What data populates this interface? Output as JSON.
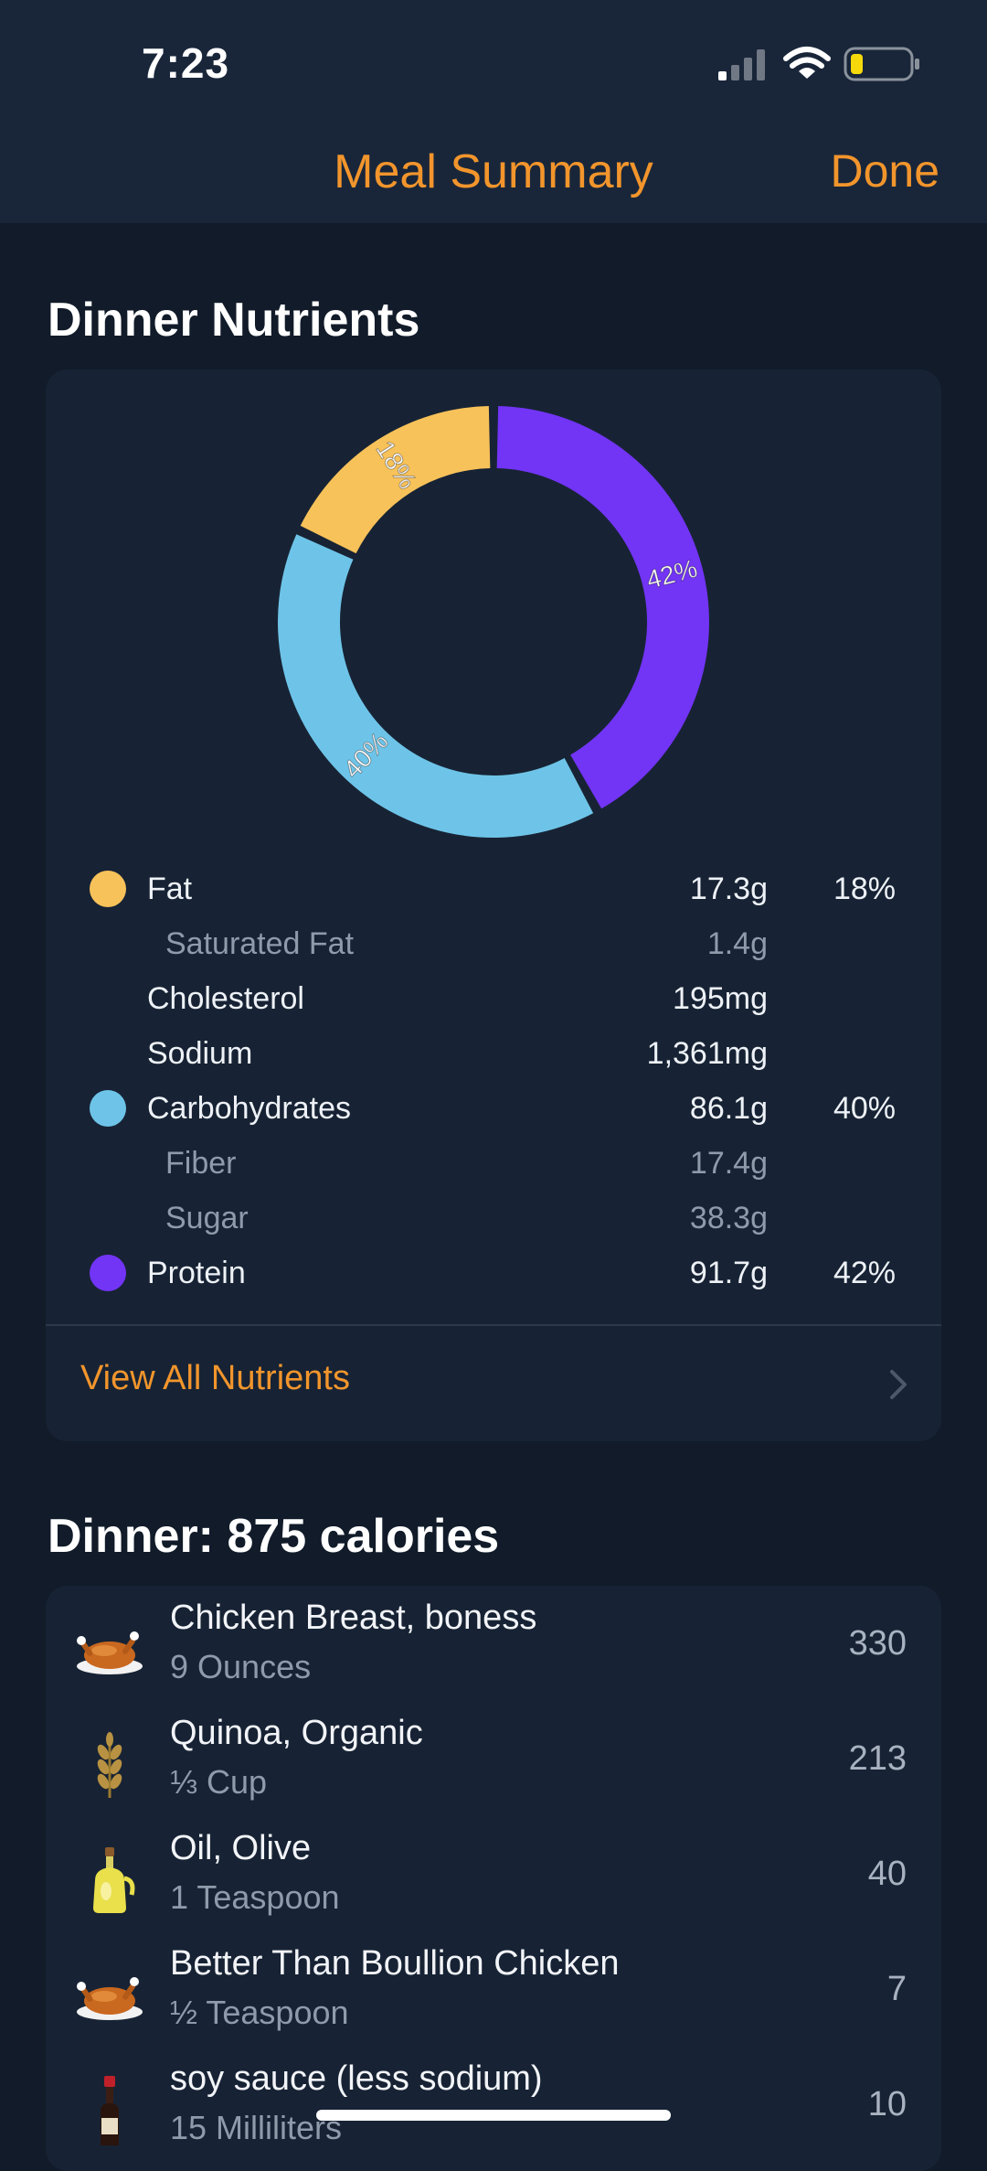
{
  "status": {
    "time": "7:23"
  },
  "nav": {
    "title": "Meal Summary",
    "done": "Done"
  },
  "nutrients_section": {
    "title": "Dinner Nutrients"
  },
  "chart_data": {
    "type": "pie",
    "donut": true,
    "slices": [
      {
        "label": "Protein",
        "value": 42,
        "display": "42%",
        "color": "#7234f5"
      },
      {
        "label": "Carbohydrates",
        "value": 40,
        "display": "40%",
        "color": "#6ec4e8"
      },
      {
        "label": "Fat",
        "value": 18,
        "display": "18%",
        "color": "#f8c25a"
      }
    ]
  },
  "nutrients": [
    {
      "label": "Fat",
      "value": "17.3g",
      "pct": "18%",
      "color": "#f8c25a",
      "sub": false
    },
    {
      "label": "Saturated Fat",
      "value": "1.4g",
      "pct": "",
      "color": "",
      "sub": true
    },
    {
      "label": "Cholesterol",
      "value": "195mg",
      "pct": "",
      "color": "",
      "sub": false
    },
    {
      "label": "Sodium",
      "value": "1,361mg",
      "pct": "",
      "color": "",
      "sub": false
    },
    {
      "label": "Carbohydrates",
      "value": "86.1g",
      "pct": "40%",
      "color": "#6ec4e8",
      "sub": false
    },
    {
      "label": "Fiber",
      "value": "17.4g",
      "pct": "",
      "color": "",
      "sub": true
    },
    {
      "label": "Sugar",
      "value": "38.3g",
      "pct": "",
      "color": "",
      "sub": true
    },
    {
      "label": "Protein",
      "value": "91.7g",
      "pct": "42%",
      "color": "#7234f5",
      "sub": false
    }
  ],
  "view_all": "View All Nutrients",
  "meal": {
    "title": "Dinner: 875 calories"
  },
  "foods": [
    {
      "name": "Chicken Breast, boness",
      "amount": "9 Ounces",
      "calories": "330",
      "icon": "roast-chicken-icon"
    },
    {
      "name": "Quinoa, Organic",
      "amount": "⅓ Cup",
      "calories": "213",
      "icon": "grain-icon"
    },
    {
      "name": "Oil, Olive",
      "amount": "1 Teaspoon",
      "calories": "40",
      "icon": "olive-oil-icon"
    },
    {
      "name": "Better Than Boullion Chicken",
      "amount": "½ Teaspoon",
      "calories": "7",
      "icon": "roast-chicken-icon"
    },
    {
      "name": "soy sauce (less sodium)",
      "amount": "15 Milliliters",
      "calories": "10",
      "icon": "sauce-bottle-icon"
    }
  ],
  "colors": {
    "accent": "#f2952c",
    "background": "#111b29",
    "card": "#172334"
  }
}
